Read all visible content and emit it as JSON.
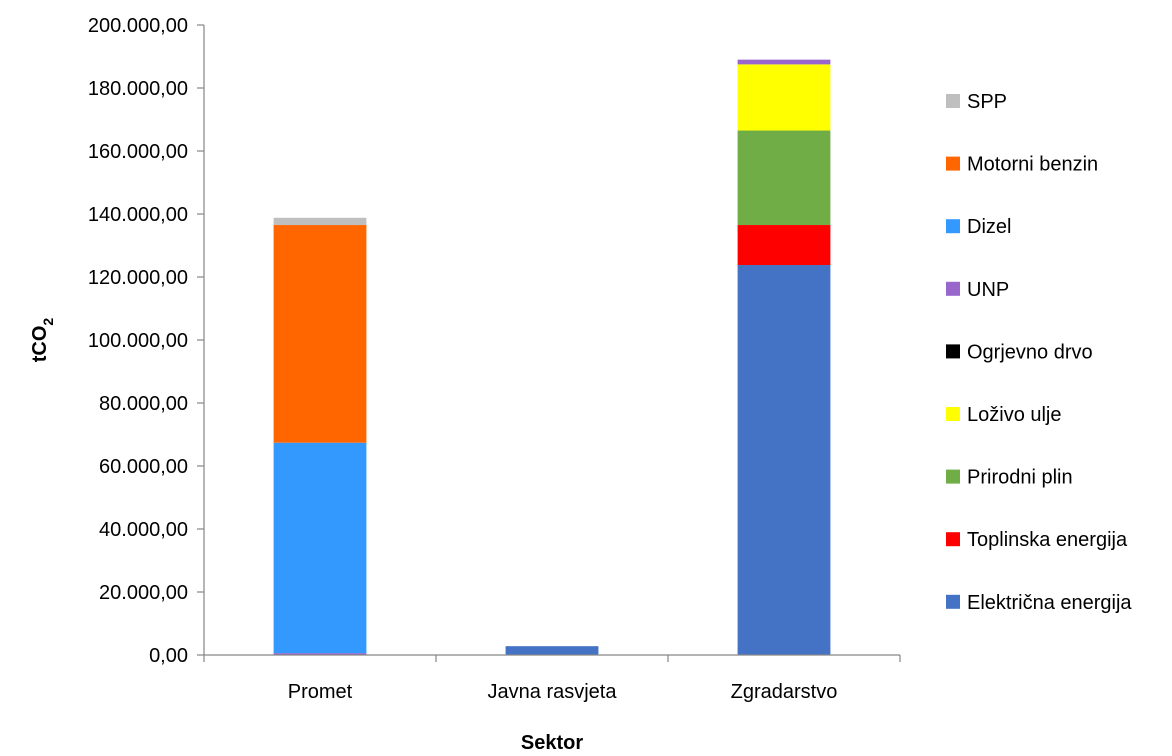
{
  "chart_data": {
    "type": "bar",
    "stacked": true,
    "categories": [
      "Promet",
      "Javna rasvjeta",
      "Zgradarstvo"
    ],
    "xlabel": "Sektor",
    "ylabel": "tCO",
    "ylabel_subscript": "2",
    "ylim": [
      0,
      200000
    ],
    "yticks": [
      0,
      20000,
      40000,
      60000,
      80000,
      100000,
      120000,
      140000,
      160000,
      180000,
      200000
    ],
    "ytick_labels": [
      "0,00",
      "20.000,00",
      "40.000,00",
      "60.000,00",
      "80.000,00",
      "100.000,00",
      "120.000,00",
      "140.000,00",
      "160.000,00",
      "180.000,00",
      "200.000,00"
    ],
    "grid": false,
    "legend_position": "right",
    "series": [
      {
        "name": "Električna energija",
        "color": "#4472C4",
        "values": [
          0,
          2800,
          123800
        ]
      },
      {
        "name": "Toplinska energija",
        "color": "#FF0000",
        "values": [
          0,
          0,
          12700
        ]
      },
      {
        "name": "Prirodni plin",
        "color": "#70AD47",
        "values": [
          0,
          0,
          30000
        ]
      },
      {
        "name": "Loživo ulje",
        "color": "#FFFF00",
        "values": [
          0,
          0,
          21000
        ]
      },
      {
        "name": "Ogrjevno drvo",
        "color": "#000000",
        "values": [
          0,
          0,
          0
        ]
      },
      {
        "name": "UNP",
        "color": "#9966CC",
        "values": [
          600,
          0,
          1500
        ]
      },
      {
        "name": "Dizel",
        "color": "#3399FF",
        "values": [
          66800,
          0,
          0
        ]
      },
      {
        "name": "Motorni benzin",
        "color": "#FF6600",
        "values": [
          69100,
          0,
          0
        ]
      },
      {
        "name": "SPP",
        "color": "#BFBFBF",
        "values": [
          2300,
          0,
          0
        ]
      }
    ],
    "legend_order": [
      "SPP",
      "Motorni benzin",
      "Dizel",
      "UNP",
      "Ogrjevno drvo",
      "Loživo ulje",
      "Prirodni plin",
      "Toplinska energija",
      "Električna energija"
    ]
  }
}
